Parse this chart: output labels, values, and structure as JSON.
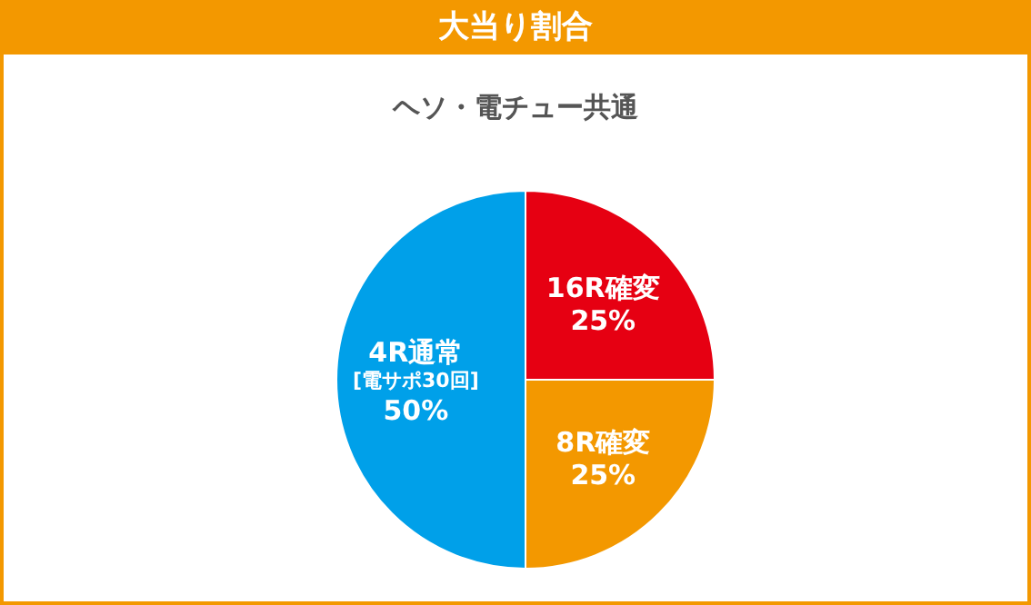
{
  "chart_data": {
    "type": "pie",
    "title": "大当り割合",
    "subtitle": "ヘソ・電チュー共通",
    "categories": [
      "16R確変",
      "8R確変",
      "4R通常\n[電サポ30回]"
    ],
    "values": [
      25,
      25,
      50
    ],
    "colors": [
      "#e60012",
      "#f39800",
      "#00a0e9"
    ],
    "value_labels": [
      "25%",
      "25%",
      "50%"
    ]
  }
}
